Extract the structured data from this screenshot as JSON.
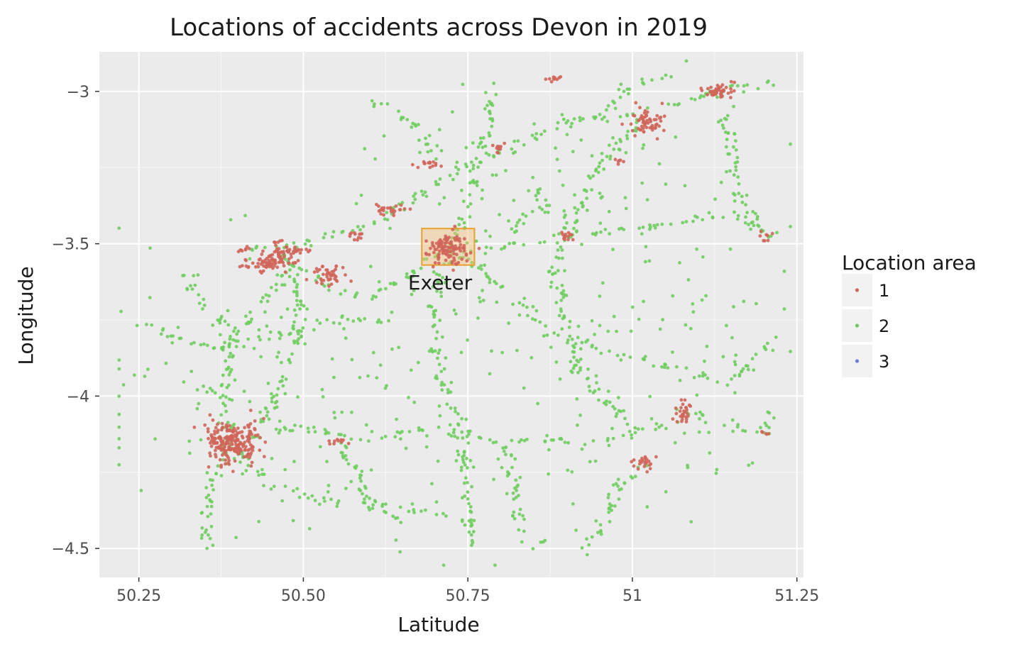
{
  "chart_data": {
    "type": "scatter",
    "title": "Locations of accidents across Devon in 2019",
    "xlabel": "Latitude",
    "ylabel": "Longitude",
    "xlim": [
      50.19,
      51.26
    ],
    "ylim": [
      -4.595,
      -2.87
    ],
    "x_ticks": [
      50.25,
      50.5,
      50.75,
      51,
      51.25
    ],
    "x_tick_labels": [
      "50.25",
      "50.50",
      "50.75",
      "51",
      "51.25"
    ],
    "y_ticks": [
      -3,
      -3.5,
      -4,
      -4.5
    ],
    "y_tick_labels": [
      "−3",
      "−3.5",
      "−4",
      "−4.5"
    ],
    "grid": true,
    "legend": {
      "title": "Location area",
      "position": "right",
      "entries": [
        {
          "label": "1",
          "color": "#d0655a"
        },
        {
          "label": "2",
          "color": "#6fcd5f"
        },
        {
          "label": "3",
          "color": "#6b7fd7"
        }
      ]
    },
    "annotation": {
      "label": "Exeter",
      "box": {
        "xmin": 50.68,
        "xmax": 50.76,
        "ymin": -3.57,
        "ymax": -3.45
      },
      "fill": "#f2c27a",
      "stroke": "#e8a12e"
    },
    "series": [
      {
        "name": "1",
        "color": "#d0655a",
        "clusters": [
          {
            "x": 50.39,
            "y": -4.15,
            "sx": 0.02,
            "sy": 0.035,
            "n": 220
          },
          {
            "x": 50.72,
            "y": -3.52,
            "sx": 0.015,
            "sy": 0.025,
            "n": 110
          },
          {
            "x": 50.47,
            "y": -3.53,
            "sx": 0.015,
            "sy": 0.018,
            "n": 70
          },
          {
            "x": 50.44,
            "y": -3.57,
            "sx": 0.02,
            "sy": 0.012,
            "n": 50
          },
          {
            "x": 50.54,
            "y": -3.6,
            "sx": 0.012,
            "sy": 0.018,
            "n": 45
          },
          {
            "x": 51.02,
            "y": -3.1,
            "sx": 0.015,
            "sy": 0.02,
            "n": 60
          },
          {
            "x": 51.13,
            "y": -3.0,
            "sx": 0.012,
            "sy": 0.012,
            "n": 45
          },
          {
            "x": 51.08,
            "y": -4.05,
            "sx": 0.008,
            "sy": 0.018,
            "n": 30
          },
          {
            "x": 50.63,
            "y": -3.39,
            "sx": 0.01,
            "sy": 0.01,
            "n": 25
          },
          {
            "x": 51.02,
            "y": -4.22,
            "sx": 0.012,
            "sy": 0.012,
            "n": 22
          },
          {
            "x": 50.9,
            "y": -3.48,
            "sx": 0.006,
            "sy": 0.01,
            "n": 14
          },
          {
            "x": 50.69,
            "y": -3.24,
            "sx": 0.01,
            "sy": 0.006,
            "n": 14
          },
          {
            "x": 50.88,
            "y": -2.96,
            "sx": 0.006,
            "sy": 0.005,
            "n": 10
          },
          {
            "x": 50.8,
            "y": -3.19,
            "sx": 0.006,
            "sy": 0.008,
            "n": 10
          },
          {
            "x": 50.55,
            "y": -4.15,
            "sx": 0.008,
            "sy": 0.005,
            "n": 10
          },
          {
            "x": 51.2,
            "y": -3.47,
            "sx": 0.005,
            "sy": 0.01,
            "n": 8
          },
          {
            "x": 50.41,
            "y": -3.52,
            "sx": 0.008,
            "sy": 0.004,
            "n": 8
          },
          {
            "x": 50.98,
            "y": -3.23,
            "sx": 0.005,
            "sy": 0.005,
            "n": 6
          },
          {
            "x": 51.2,
            "y": -4.12,
            "sx": 0.004,
            "sy": 0.005,
            "n": 5
          },
          {
            "x": 50.58,
            "y": -3.47,
            "sx": 0.01,
            "sy": 0.01,
            "n": 12
          }
        ]
      },
      {
        "name": "2",
        "color": "#6fcd5f",
        "roads": [
          [
            [
              50.41,
              -3.52
            ],
            [
              50.5,
              -3.5
            ],
            [
              50.6,
              -3.44
            ],
            [
              50.65,
              -3.38
            ],
            [
              50.72,
              -3.28
            ],
            [
              50.8,
              -3.2
            ],
            [
              50.9,
              -3.1
            ],
            [
              51.02,
              -3.07
            ],
            [
              51.13,
              -3.0
            ],
            [
              51.22,
              -2.97
            ]
          ],
          [
            [
              50.72,
              -3.52
            ],
            [
              50.82,
              -3.5
            ],
            [
              50.95,
              -3.46
            ],
            [
              51.05,
              -3.44
            ],
            [
              51.15,
              -3.4
            ],
            [
              51.22,
              -3.48
            ]
          ],
          [
            [
              50.72,
              -3.52
            ],
            [
              50.7,
              -3.7
            ],
            [
              50.7,
              -3.9
            ],
            [
              50.73,
              -4.05
            ],
            [
              50.75,
              -4.3
            ],
            [
              50.76,
              -4.5
            ]
          ],
          [
            [
              50.39,
              -4.15
            ],
            [
              50.38,
              -3.95
            ],
            [
              50.4,
              -3.8
            ],
            [
              50.45,
              -3.65
            ],
            [
              50.5,
              -3.55
            ]
          ],
          [
            [
              50.39,
              -4.15
            ],
            [
              50.5,
              -4.1
            ],
            [
              50.6,
              -4.15
            ],
            [
              50.7,
              -4.1
            ],
            [
              50.8,
              -4.15
            ],
            [
              50.95,
              -4.15
            ],
            [
              51.08,
              -4.08
            ]
          ],
          [
            [
              50.39,
              -4.15
            ],
            [
              50.45,
              -4.3
            ],
            [
              50.55,
              -4.35
            ],
            [
              50.63,
              -4.35
            ],
            [
              50.72,
              -4.4
            ]
          ],
          [
            [
              50.39,
              -4.15
            ],
            [
              50.36,
              -4.3
            ],
            [
              50.35,
              -4.5
            ]
          ],
          [
            [
              50.72,
              -3.52
            ],
            [
              50.78,
              -3.6
            ],
            [
              50.85,
              -3.75
            ],
            [
              50.95,
              -3.85
            ],
            [
              51.05,
              -3.9
            ],
            [
              51.15,
              -3.95
            ],
            [
              51.22,
              -3.8
            ]
          ],
          [
            [
              50.72,
              -3.52
            ],
            [
              50.76,
              -3.33
            ],
            [
              50.78,
              -3.1
            ],
            [
              50.79,
              -2.98
            ]
          ],
          [
            [
              50.24,
              -3.75
            ],
            [
              50.3,
              -3.8
            ],
            [
              50.38,
              -3.85
            ],
            [
              50.45,
              -3.8
            ],
            [
              50.55,
              -3.75
            ],
            [
              50.65,
              -3.75
            ]
          ],
          [
            [
              51.02,
              -3.07
            ],
            [
              50.97,
              -3.2
            ],
            [
              50.93,
              -3.33
            ],
            [
              50.9,
              -3.48
            ],
            [
              50.88,
              -3.6
            ]
          ],
          [
            [
              51.13,
              -3.0
            ],
            [
              51.15,
              -3.2
            ],
            [
              51.16,
              -3.35
            ],
            [
              51.2,
              -3.47
            ]
          ],
          [
            [
              51.08,
              -4.05
            ],
            [
              51.15,
              -4.1
            ],
            [
              51.2,
              -4.12
            ],
            [
              51.21,
              -4.05
            ]
          ],
          [
            [
              51.02,
              -4.22
            ],
            [
              50.98,
              -4.3
            ],
            [
              50.95,
              -4.45
            ],
            [
              50.92,
              -4.5
            ]
          ],
          [
            [
              50.72,
              -3.52
            ],
            [
              50.65,
              -3.62
            ],
            [
              50.6,
              -3.68
            ],
            [
              50.55,
              -3.66
            ],
            [
              50.5,
              -3.6
            ]
          ],
          [
            [
              50.55,
              -4.15
            ],
            [
              50.58,
              -4.25
            ],
            [
              50.6,
              -4.35
            ],
            [
              50.65,
              -4.42
            ]
          ],
          [
            [
              50.8,
              -4.15
            ],
            [
              50.82,
              -4.3
            ],
            [
              50.83,
              -4.45
            ],
            [
              50.87,
              -4.48
            ]
          ],
          [
            [
              50.88,
              -3.6
            ],
            [
              50.9,
              -3.75
            ],
            [
              50.92,
              -3.9
            ],
            [
              50.95,
              -4.0
            ],
            [
              51.0,
              -4.1
            ]
          ],
          [
            [
              50.47,
              -3.53
            ],
            [
              50.5,
              -3.7
            ],
            [
              50.48,
              -3.9
            ],
            [
              50.45,
              -4.05
            ],
            [
              50.42,
              -4.12
            ]
          ],
          [
            [
              50.32,
              -3.6
            ],
            [
              50.35,
              -3.7
            ],
            [
              50.38,
              -3.78
            ]
          ],
          [
            [
              50.95,
              -3.1
            ],
            [
              51.0,
              -2.97
            ],
            [
              51.06,
              -2.95
            ]
          ],
          [
            [
              50.6,
              -3.03
            ],
            [
              50.66,
              -3.1
            ],
            [
              50.7,
              -3.2
            ]
          ],
          [
            [
              50.85,
              -3.3
            ],
            [
              50.88,
              -3.4
            ],
            [
              50.85,
              -3.38
            ],
            [
              50.82,
              -3.45
            ]
          ]
        ],
        "clusters": [
          {
            "x": 50.6,
            "y": -4.0,
            "sx": 0.25,
            "sy": 0.28,
            "n": 140
          },
          {
            "x": 50.9,
            "y": -3.7,
            "sx": 0.15,
            "sy": 0.35,
            "n": 90
          },
          {
            "x": 50.85,
            "y": -3.3,
            "sx": 0.12,
            "sy": 0.12,
            "n": 50
          },
          {
            "x": 51.1,
            "y": -3.85,
            "sx": 0.07,
            "sy": 0.3,
            "n": 45
          },
          {
            "x": 50.45,
            "y": -3.9,
            "sx": 0.08,
            "sy": 0.25,
            "n": 40
          }
        ]
      },
      {
        "name": "3",
        "color": "#6b7fd7",
        "clusters": []
      }
    ]
  }
}
